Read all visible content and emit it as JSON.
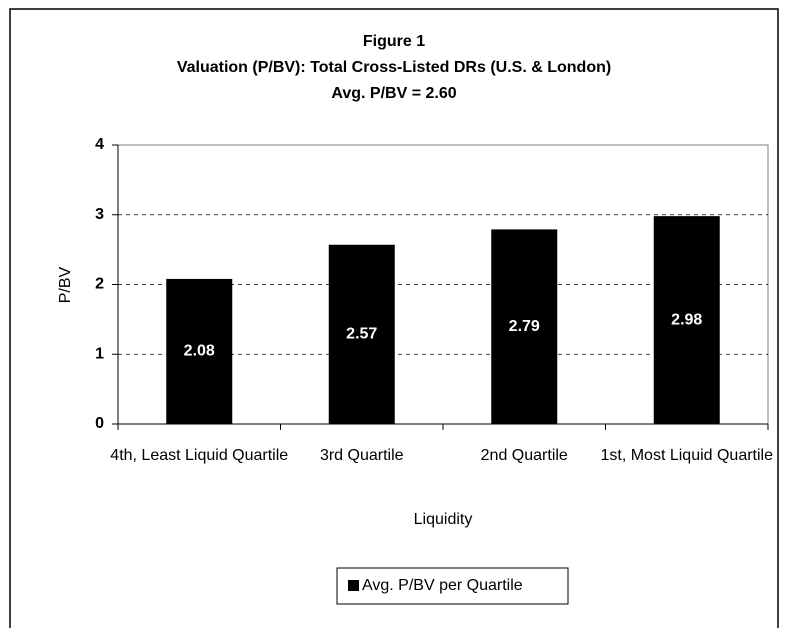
{
  "chart_data": {
    "type": "bar",
    "title": "Figure 1",
    "subtitle": "Valuation (P/BV): Total Cross-Listed DRs (U.S. & London)",
    "annotation": "Avg. P/BV = 2.60",
    "x_label": "Liquidity",
    "y_label": "P/BV",
    "categories": [
      "4th, Least Liquid Quartile",
      "3rd Quartile",
      "2nd Quartile",
      "1st, Most Liquid Quartile"
    ],
    "series": [
      {
        "name": "Avg. P/BV per Quartile",
        "color": "#000000",
        "values": [
          2.08,
          2.57,
          2.79,
          2.98
        ]
      }
    ],
    "ylim": [
      0,
      4
    ],
    "yticks": [
      0,
      1,
      2,
      3,
      4
    ],
    "grid": true,
    "legend": "bottom"
  }
}
